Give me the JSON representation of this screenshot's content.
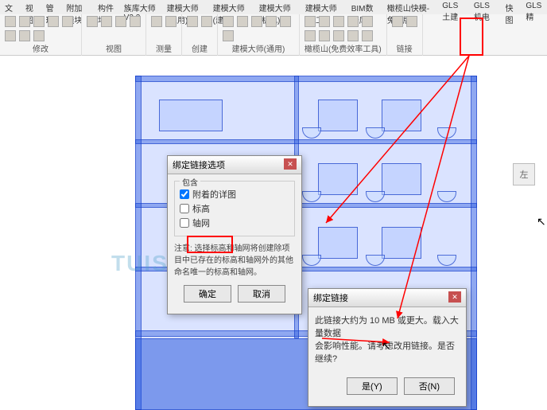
{
  "tabs": [
    "文件",
    "视图",
    "管理",
    "附加模块",
    "构件坞",
    "族库大师V3.2",
    "建模大师(通用)",
    "建模大师(建筑)",
    "建模大师(机电)",
    "建模大师(施工)",
    "BIM数据库",
    "橄榄山快模-免费版",
    "GLS土建",
    "GLS机电",
    "快图",
    "GLS精"
  ],
  "ribbon_groups": [
    {
      "label": "修改",
      "n": 8
    },
    {
      "label": "视图",
      "n": 4
    },
    {
      "label": "测量",
      "n": 2
    },
    {
      "label": "创建",
      "n": 2
    },
    {
      "label": "建模大师(通用)",
      "n": 6
    },
    {
      "label": "橄榄山(免费效率工具)",
      "n": 10
    },
    {
      "label": "链接",
      "n": 2
    }
  ],
  "dialog1": {
    "title": "绑定链接选项",
    "group": "包含",
    "checks": [
      {
        "label": "附着的详图",
        "checked": true
      },
      {
        "label": "标高",
        "checked": false
      },
      {
        "label": "轴网",
        "checked": false
      }
    ],
    "note": "注意: 选择标高和轴网将创建除项目中已存在的标高和轴网外的其他命名唯一的标高和轴网。",
    "ok": "确定",
    "cancel": "取消"
  },
  "dialog2": {
    "title": "绑定链接",
    "msg1": "此链接大约为 10 MB 或更大。载入大量数据",
    "msg2": "会影响性能。请考虑改用链接。是否继续?",
    "yes": "是(Y)",
    "no": "否(N)"
  },
  "cube": "左",
  "watermark": "TUISOFT",
  "colors": {
    "hl": "#ff0000",
    "blueprint": "rgba(50,100,255,0.18)"
  }
}
